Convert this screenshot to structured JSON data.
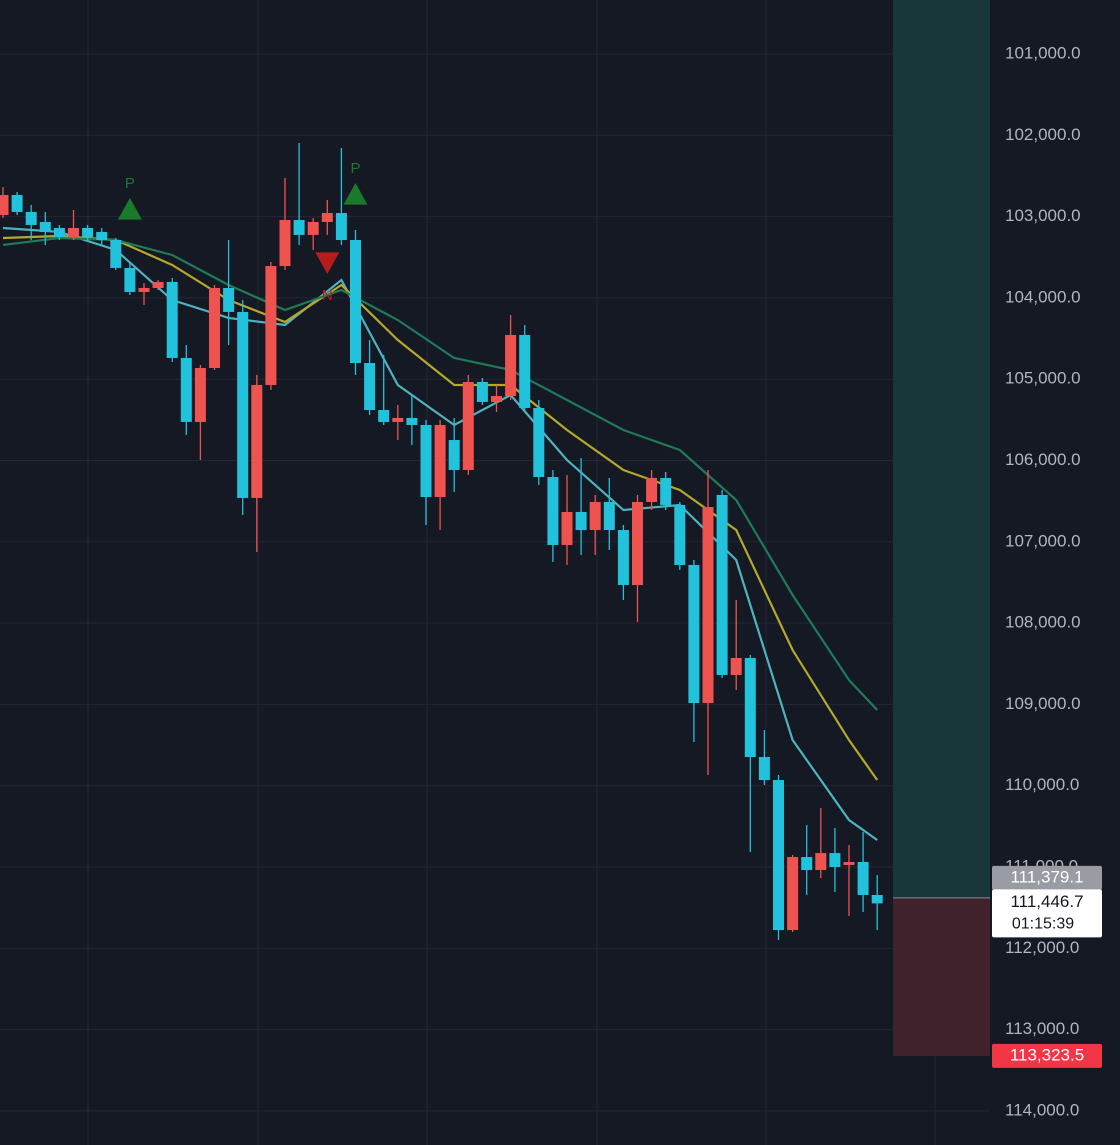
{
  "chart_data": {
    "type": "candlestick",
    "open": [
      102980,
      102734,
      102943,
      103066,
      103140,
      103251,
      103140,
      103189,
      103288,
      103632,
      103927,
      103878,
      103804,
      104739,
      105526,
      104862,
      103878,
      104173,
      106461,
      105071,
      103608,
      103042,
      103226,
      103066,
      102956,
      103288,
      104801,
      105379,
      105526,
      105477,
      105563,
      106449,
      105748,
      106117,
      105034,
      105280,
      105207,
      104456,
      105354,
      106203,
      107039,
      106633,
      106855,
      106510,
      106855,
      107531,
      106510,
      106215,
      106547,
      107285,
      108983,
      106424,
      108638,
      108429,
      109647,
      109930,
      111775,
      110877,
      111037,
      110828,
      110975,
      110938,
      111344
    ],
    "high": [
      103017,
      102980,
      103288,
      103349,
      103288,
      103288,
      103288,
      103349,
      103657,
      103964,
      104087,
      103903,
      104788,
      105686,
      105994,
      104887,
      104579,
      106670,
      107125,
      105133,
      103657,
      103349,
      103411,
      103226,
      103349,
      104948,
      105440,
      105563,
      105748,
      105809,
      106793,
      106855,
      106387,
      106178,
      105317,
      105403,
      105256,
      105403,
      106301,
      107248,
      107285,
      107162,
      107162,
      107101,
      107716,
      107986,
      106609,
      106609,
      107347,
      109462,
      109868,
      108675,
      108823,
      110815,
      109991,
      111898,
      111799,
      111344,
      111135,
      111307,
      111603,
      111553,
      111775
    ],
    "low": [
      102636,
      102697,
      102857,
      102943,
      103103,
      102919,
      103103,
      103140,
      103263,
      103558,
      103817,
      103780,
      103755,
      104579,
      104825,
      103841,
      103288,
      104026,
      104948,
      103558,
      102525,
      102095,
      103017,
      102796,
      102156,
      103165,
      104518,
      104702,
      105317,
      105194,
      105502,
      105502,
      105477,
      104948,
      104985,
      105071,
      104210,
      104333,
      105256,
      106117,
      106178,
      105969,
      106424,
      106215,
      106793,
      106424,
      106117,
      106141,
      106510,
      107224,
      106117,
      106363,
      107716,
      108392,
      109315,
      109868,
      110852,
      110483,
      110274,
      110520,
      110729,
      110569,
      111098
    ],
    "close": [
      102734,
      102943,
      103103,
      103189,
      103251,
      103140,
      103251,
      103288,
      103632,
      103927,
      103878,
      103804,
      104739,
      105526,
      104862,
      103878,
      104173,
      106461,
      105071,
      103608,
      103042,
      103226,
      103066,
      102956,
      103288,
      104801,
      105379,
      105526,
      105477,
      105563,
      106449,
      105563,
      106117,
      105034,
      105280,
      105207,
      104456,
      105354,
      106203,
      107039,
      106633,
      106855,
      106510,
      106855,
      107531,
      106510,
      106215,
      106547,
      107285,
      108983,
      106572,
      108638,
      108429,
      109647,
      109930,
      111775,
      110877,
      111037,
      110828,
      111000,
      110938,
      111344,
      111447
    ],
    "up_color": "#22c1dc",
    "down_color": "#ef5350",
    "series": [
      {
        "color": "#4fb3bf",
        "x": [
          0,
          4,
          8,
          12,
          16,
          20,
          24,
          28,
          32,
          36,
          40,
          44,
          48,
          52,
          56,
          60,
          62
        ],
        "values": [
          103140,
          103189,
          103411,
          104026,
          104247,
          104333,
          103780,
          105071,
          105563,
          105194,
          105994,
          106609,
          106547,
          107224,
          109438,
          110422,
          110668
        ]
      },
      {
        "color": "#b5a82a",
        "x": [
          0,
          4,
          8,
          12,
          16,
          20,
          24,
          28,
          32,
          36,
          40,
          44,
          48,
          52,
          56,
          60,
          62
        ],
        "values": [
          103263,
          103239,
          103288,
          103595,
          104026,
          104296,
          103841,
          104518,
          105071,
          105071,
          105625,
          106117,
          106363,
          106855,
          108331,
          109438,
          109930
        ]
      },
      {
        "color": "#1f7a55",
        "x": [
          0,
          4,
          8,
          12,
          16,
          20,
          24,
          28,
          32,
          36,
          40,
          44,
          48,
          52,
          56,
          60,
          62
        ],
        "values": [
          103349,
          103263,
          103288,
          103472,
          103841,
          104149,
          103903,
          104272,
          104739,
          104887,
          105256,
          105625,
          105871,
          106486,
          107654,
          108700,
          109069
        ]
      }
    ],
    "annotations": [
      {
        "label": "P",
        "index": 9,
        "value": 102919,
        "direction": "up",
        "color": "#1b7a2a"
      },
      {
        "label": "N",
        "index": 23,
        "value": 103558,
        "direction": "down",
        "color": "#b71c1c"
      },
      {
        "label": "P",
        "index": 25,
        "value": 102734,
        "direction": "up",
        "color": "#1b7a2a"
      }
    ],
    "position": {
      "entry": {
        "value": 111379.1,
        "label": "111,379.1"
      },
      "stop": {
        "value": 113323.5,
        "label": "113,323.5"
      },
      "profit_color": "#17373a",
      "loss_color": "#3f222c"
    },
    "last_price": {
      "value": 111446.7,
      "label": "111,446.7",
      "countdown": "01:15:39"
    },
    "ylim": [
      100336,
      114419
    ],
    "y_inverted": true,
    "grid": true,
    "yticks": [
      {
        "value": 101000,
        "label": "101,000.0"
      },
      {
        "value": 102000,
        "label": "102,000.0"
      },
      {
        "value": 103000,
        "label": "103,000.0"
      },
      {
        "value": 104000,
        "label": "104,000.0"
      },
      {
        "value": 105000,
        "label": "105,000.0"
      },
      {
        "value": 106000,
        "label": "106,000.0"
      },
      {
        "value": 107000,
        "label": "107,000.0"
      },
      {
        "value": 108000,
        "label": "108,000.0"
      },
      {
        "value": 109000,
        "label": "109,000.0"
      },
      {
        "value": 110000,
        "label": "110,000.0"
      },
      {
        "value": 111000,
        "label": "111,000.0"
      },
      {
        "value": 112000,
        "label": "112,000.0"
      },
      {
        "value": 113000,
        "label": "113,000.0"
      },
      {
        "value": 114000,
        "label": "114,000.0"
      }
    ]
  }
}
